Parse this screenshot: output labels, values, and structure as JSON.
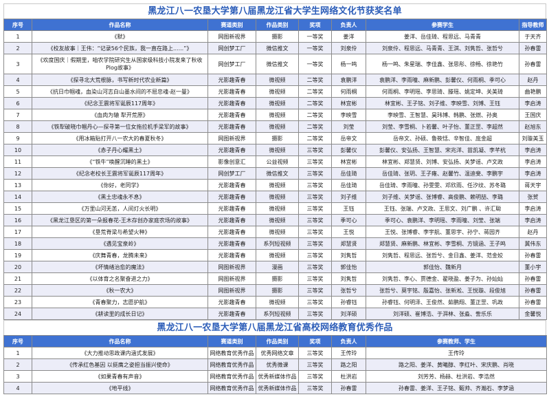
{
  "table1": {
    "title": "黑龙江八一农垦大学第八届黑龙江省大学生网络文化节获奖名单",
    "headers": [
      "序号",
      "作品名称",
      "赛道类别",
      "作品类别",
      "奖项",
      "负责人",
      "参赛学生",
      "指导教师"
    ],
    "rows": [
      [
        "1",
        "《默》",
        "网图新视界",
        "摄影",
        "一等奖",
        "姜洋",
        "姜洋、岳佳琦、程思远、马青青",
        "于天齐"
      ],
      [
        "2",
        "《校友故事｜王伟：“记录56个民族，我一直在路上......”》",
        "网创梦工厂",
        "微信推文",
        "一等奖",
        "刘泉伶",
        "刘泉伶、程思远、马青青、王淇、刘隽哲、张哲兮",
        "孙春雷"
      ],
      [
        "3",
        "《欢度国庆｜假期里，咱农学院研究生从国家级科技小院发来了秋收Plog故事》",
        "网创梦工厂",
        "微信推文",
        "一等奖",
        "杨一鸣",
        "杨一鸣、朱星瑞、李佳鑫、张思彤、徐畅、徐艳竹",
        "孙春雷"
      ],
      [
        "4",
        "《探寻北大荒根脉，书写新时代农业新篇》",
        "光影趣青春",
        "微视频",
        "二等奖",
        "袁鹏洋",
        "袁鹏洋、李雨曈、麻新鹏、彭馨仪、何雨桐、季可心",
        "赵丹"
      ],
      [
        "5",
        "《抗日巾帼魂，血染山河志白山墨水间的不屈忠魂-赵一曼》",
        "光影趣青春",
        "微视频",
        "二等奖",
        "何雨桐",
        "何雨桐、李明瑶、李思琦、滕瑶、姚定坤、关美琦",
        "曲艳鹏"
      ],
      [
        "6",
        "《纪念王震将军诞辰117周年》",
        "光影趣青春",
        "微视频",
        "二等奖",
        "林宜彬",
        "林宜彬、王子铭、刘子维、李映雪、刘博、王钰",
        "李启涛"
      ],
      [
        "7",
        "《血肉为辕 犁开荒原》",
        "光影趣青春",
        "微视频",
        "二等奖",
        "李映雪",
        "李映雪、王智慧、昊玮博、韩鹏、张燃、孙奥",
        "王国庆"
      ],
      [
        "8",
        "《铁犁破晓巾帼丹心—探寻第一位女拖拉机手梁军的故事》",
        "光影趣青春",
        "微视频",
        "二等奖",
        "刘莹",
        "刘莹、李雪桐、卜若馨、叶子怡、董正罡、李超然",
        "赵旭东"
      ],
      [
        "9",
        "《用冰箱贴打开八一农大的春夏秋冬》",
        "网图新视界",
        "摄影",
        "二等奖",
        "岳帝文",
        "岳帝文、孙硕、鲁筱恬、辛智佳、庞金超",
        "刘璇美玉"
      ],
      [
        "10",
        "《赤子丹心耀黑土》",
        "光影趣青春",
        "微视频",
        "三等奖",
        "彭馨仪",
        "彭馨仪、安弘扬、王智慧、宋兆洋、苗凯凝、李芊杭",
        "李启涛"
      ],
      [
        "11",
        "《“铁牛”唤醒沉睡的黑土》",
        "影像创意汇",
        "公益视频",
        "三等奖",
        "林宜彬",
        "林宜彬、郑慧贤、刘博、安弘扬、关梦谣、卢文政",
        "李启涛"
      ],
      [
        "12",
        "《纪念老校长王震将军诞辰117周年》",
        "网创梦工厂",
        "微信推文",
        "三等奖",
        "岳佳琦",
        "岳佳琦、张玥、王子雍、赵馨竹、温迪斐、李鹏宇",
        "李启涛"
      ],
      [
        "13",
        "《你好，老同学》",
        "光影趣青春",
        "微视频",
        "三等奖",
        "岳佳琦",
        "岳佳琦、李雨曈、孙雯雯、邓欣雨、任汐纹、苏冬璐",
        "蒋天宇"
      ],
      [
        "14",
        "《黑土忠魂永不息》",
        "光影趣青春",
        "微视频",
        "三等奖",
        "刘子维",
        "刘子维、关梦谣、张博睿、高俊鹏、赖明喆、李璐",
        "张贺"
      ],
      [
        "15",
        "《万里山河无恙，人间灯火长明》",
        "光影趣青春",
        "微视频",
        "三等奖",
        "王钰",
        "王钰、张端、卢文政、王思文、刘广鹏 、许汇聪",
        "李启涛"
      ],
      [
        "16",
        "《黑龙江垦区的第一朵报春花-王木存创办家庭农场的故事》",
        "光影趣青春",
        "微视频",
        "三等奖",
        "季可心",
        "季可心、袁鹏洋、李明瑶、李雨曈、刘莹、张端",
        "李启涛"
      ],
      [
        "17",
        "《垦荒脊梁与希望火种》",
        "光影趣青春",
        "微视频",
        "三等奖",
        "王悦",
        "王悦、张博睿、李宇航、董思宇、孙宁、蒋园齐",
        "赵丹"
      ],
      [
        "18",
        "《遇见宝泉岭》",
        "光影趣青春",
        "系列短视频",
        "三等奖",
        "郑慧贤",
        "郑慧贤、麻新鹏、林宜彬、李雪桐、方镜涵、王子鸣",
        "冀伟东"
      ],
      [
        "19",
        "《庆舞青春，龙腾未来》",
        "光影趣青春",
        "微视频",
        "三等奖",
        "刘隽哲",
        "刘隽哲、程思远、张哲兮、金日鑫、姜洋、范金姣",
        "孙春雷"
      ],
      [
        "20",
        "《坏情绪治愈的魔法》",
        "网图新视界",
        "漫画",
        "三等奖",
        "郭佳怡",
        "郭佳怡、魏新月",
        "董小宇"
      ],
      [
        "21",
        "《以体育之名聚奋进之力》",
        "网图新视界",
        "摄影",
        "三等奖",
        "刘隽哲",
        "刘隽哲、李心、贾德金、翟晓盈、姜子为、孙灿灿",
        "孙春雷"
      ],
      [
        "22",
        "《秋一农大》",
        "网图新视界",
        "摄影",
        "三等奖",
        "张哲兮",
        "张哲兮、莫宇铭、殷嘉怡、张新淞、王悦璇、段俊旭",
        "孙春雷"
      ],
      [
        "23",
        "《青春聚力，志愿护航》",
        "光影趣青春",
        "微视频",
        "三等奖",
        "孙睿钰",
        "孙睿钰、何明泽、王俊然、茹鹏翔、董正罡、巩政",
        "孙春雷"
      ],
      [
        "24",
        "《耕读里的成长日记》",
        "光影趣青春",
        "系列短视频",
        "三等奖",
        "刘洋硕",
        "刘洋硕、崔博浩、于湃林、张淼、訾乐乐",
        "金馨悦"
      ]
    ]
  },
  "table2": {
    "title": "黑龙江八一农垦大学第八届黑龙江省高校网络教育优秀作品",
    "headers": [
      "序号",
      "作品名称",
      "赛道类别",
      "作品类别",
      "奖项",
      "负责人",
      "参赛教师、学生"
    ],
    "rows": [
      [
        "1",
        "《大力推动思政课内涵式发展》",
        "网络教育优秀作品",
        "优秀网络文章",
        "三等奖",
        "王传玲",
        "王传玲"
      ],
      [
        "2",
        "《传承红色基因 以挺膺之姿担当振兴使命》",
        "网络教育优秀作品",
        "优秀微课",
        "三等奖",
        "路之阳",
        "路之阳、姜洋、黄曦醇、李红叶、宋庆鹏、肖晓"
      ],
      [
        "3",
        "《如果青春有声音》",
        "网络教育优秀作品",
        "优秀新媒体作品",
        "三等奖",
        "杜洪岩",
        "刘芳芳、杨赫、杜洪岩、李浩然"
      ],
      [
        "4",
        "《地平线》",
        "网络教育优秀作品",
        "优秀新媒体作品",
        "三等奖",
        "孙春雷",
        "孙春雷、姜洋、王子铭、甄帅、齐瀚石、李梦涵"
      ]
    ]
  },
  "colors": {
    "header_bg": "#3f72d2",
    "title": "#2b5cb8",
    "alt_row": "#ecedf8"
  }
}
